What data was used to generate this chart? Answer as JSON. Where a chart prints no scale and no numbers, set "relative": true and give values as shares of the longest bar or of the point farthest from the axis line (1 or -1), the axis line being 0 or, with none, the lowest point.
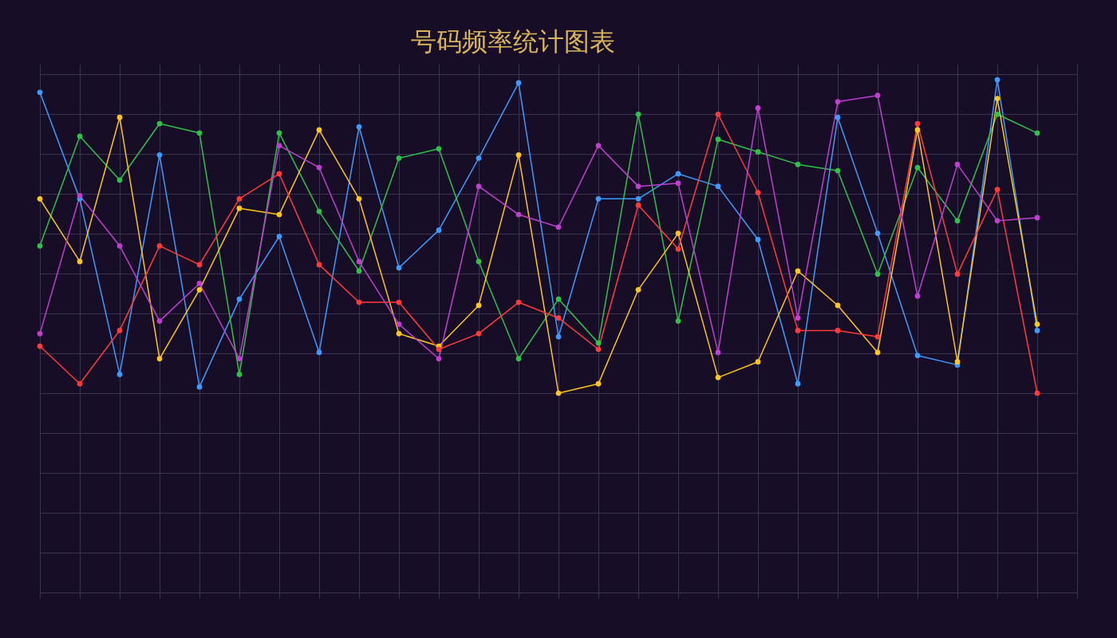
{
  "chart_data": {
    "type": "line",
    "title": "号码频率统计图表",
    "relative": true,
    "grid": true,
    "marker": "circle",
    "line_style": "solid",
    "categories": [
      null,
      null,
      null,
      null,
      null,
      null,
      null,
      null,
      null,
      null,
      null,
      null,
      null,
      null,
      null,
      null,
      null,
      null,
      null,
      null,
      null,
      null,
      null,
      null,
      null,
      null
    ],
    "series": [
      {
        "color": "#3d9bff",
        "values": [
          0.96,
          0.62,
          0.06,
          0.76,
          0.02,
          0.3,
          0.5,
          0.13,
          0.85,
          0.4,
          0.52,
          0.75,
          0.99,
          0.18,
          0.62,
          0.62,
          0.7,
          0.66,
          0.49,
          0.03,
          0.88,
          0.51,
          0.12,
          0.09,
          1,
          0.2
        ]
      },
      {
        "color": "#2fc24a",
        "values": [
          0.47,
          0.82,
          0.68,
          0.86,
          0.83,
          0.06,
          0.83,
          0.58,
          0.39,
          0.75,
          0.78,
          0.42,
          0.11,
          0.3,
          0.16,
          0.89,
          0.23,
          0.81,
          0.77,
          0.73,
          0.71,
          0.38,
          0.72,
          0.55,
          0.89,
          0.83
        ]
      },
      {
        "color": "#ffc61a",
        "values": [
          0.62,
          0.42,
          0.88,
          0.11,
          0.33,
          0.59,
          0.57,
          0.84,
          0.62,
          0.19,
          0.15,
          0.28,
          0.76,
          0.0,
          0.03,
          0.33,
          0.51,
          0.05,
          0.1,
          0.39,
          0.28,
          0.13,
          0.84,
          0.1,
          0.94,
          0.22
        ]
      },
      {
        "color": "#ff3b3b",
        "values": [
          0.15,
          0.03,
          0.2,
          0.47,
          0.41,
          0.62,
          0.7,
          0.41,
          0.29,
          0.29,
          0.14,
          0.19,
          0.29,
          0.24,
          0.14,
          0.6,
          0.46,
          0.89,
          0.64,
          0.2,
          0.2,
          0.18,
          0.86,
          0.38,
          0.65,
          0
        ]
      },
      {
        "color": "#c03fd0",
        "values": [
          0.19,
          0.63,
          0.47,
          0.23,
          0.35,
          0.11,
          0.79,
          0.72,
          0.42,
          0.22,
          0.11,
          0.66,
          0.57,
          0.53,
          0.79,
          0.66,
          0.67,
          0.13,
          0.91,
          0.24,
          0.93,
          0.95,
          0.31,
          0.73,
          0.55,
          0.56
        ]
      }
    ]
  }
}
